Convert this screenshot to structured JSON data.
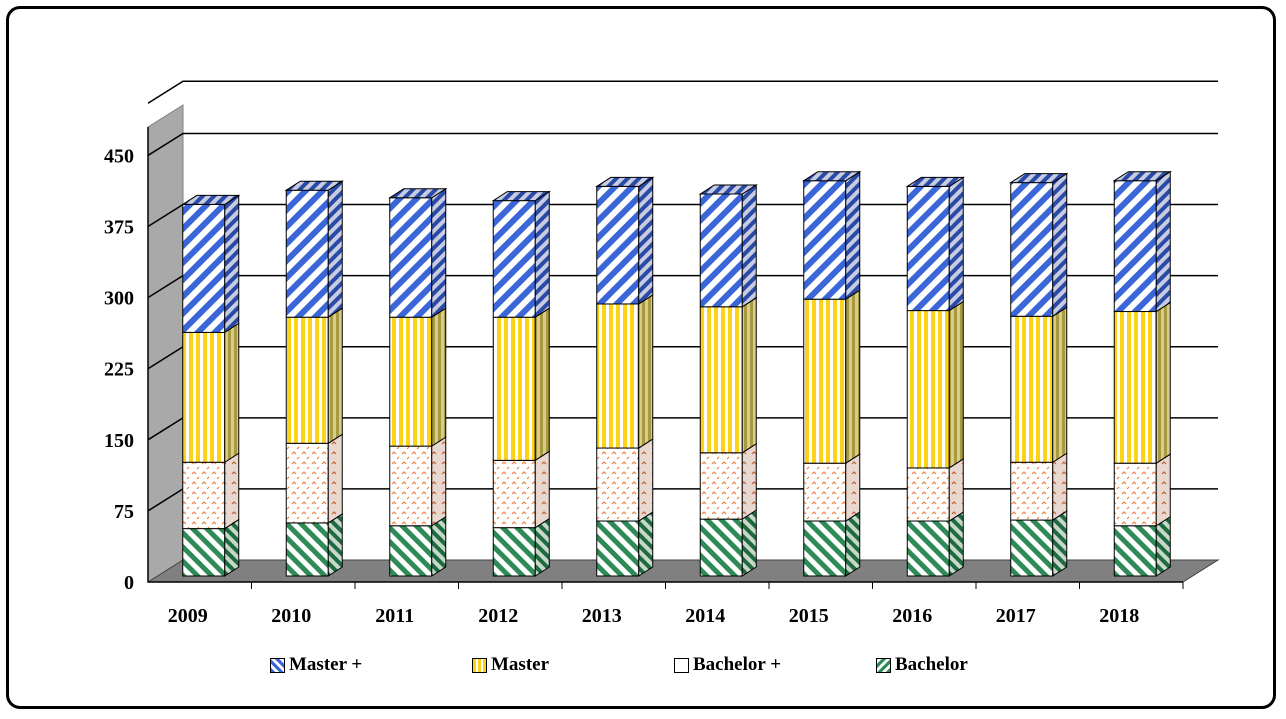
{
  "chart_data": {
    "type": "bar",
    "stacked": true,
    "style": "3d",
    "categories": [
      "2009",
      "2010",
      "2011",
      "2012",
      "2013",
      "2014",
      "2015",
      "2016",
      "2017",
      "2018"
    ],
    "series": [
      {
        "name": "Bachelor",
        "values": [
          50,
          56,
          53,
          51,
          58,
          60,
          58,
          58,
          59,
          53
        ],
        "color": "#2e8b57",
        "pattern": "diagonal-stripes"
      },
      {
        "name": "Bachelor +",
        "values": [
          70,
          84,
          84,
          71,
          77,
          70,
          61,
          56,
          61,
          66
        ],
        "color": "#f4a460",
        "pattern": "dotted"
      },
      {
        "name": "Master",
        "values": [
          137,
          133,
          136,
          151,
          152,
          154,
          173,
          166,
          154,
          160
        ],
        "color": "#ffd700",
        "pattern": "vertical-stripes"
      },
      {
        "name": "Master +",
        "values": [
          135,
          134,
          126,
          123,
          124,
          119,
          125,
          131,
          141,
          138
        ],
        "color": "#4169e1",
        "pattern": "diagonal-stripes"
      }
    ],
    "yticks": [
      0,
      75,
      150,
      225,
      300,
      375,
      450
    ],
    "ylim": [
      0,
      480
    ],
    "grid": true,
    "legend_position": "bottom",
    "legend_order": [
      "Master +",
      "Master",
      "Bachelor +",
      "Bachelor"
    ]
  }
}
